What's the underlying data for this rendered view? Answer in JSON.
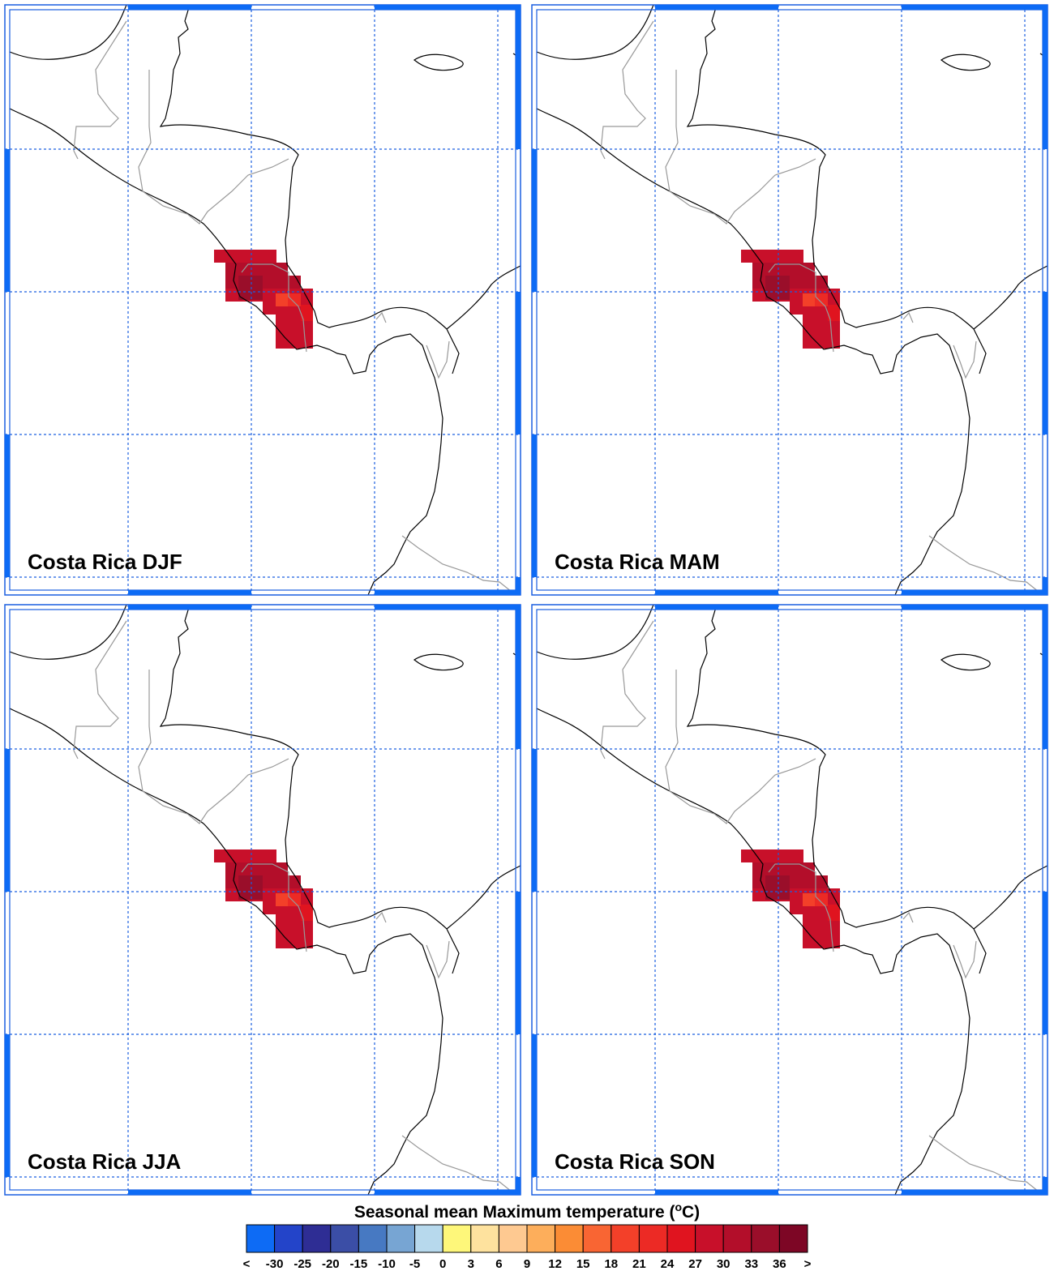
{
  "panels": [
    {
      "title": "Costa Rica DJF"
    },
    {
      "title": "Costa Rica MAM"
    },
    {
      "title": "Costa Rica JJA"
    },
    {
      "title": "Costa Rica SON"
    }
  ],
  "colorbar": {
    "title": [
      "Seasonal mean Maximum temperature (",
      "o",
      "C)"
    ],
    "labels": [
      "<",
      "-30",
      "-25",
      "-20",
      "-15",
      "-10",
      "-5",
      "0",
      "3",
      "6",
      "9",
      "12",
      "15",
      "18",
      "21",
      "24",
      "27",
      "30",
      "33",
      "36",
      ">"
    ],
    "colors": [
      "#0d6bf5",
      "#2344c9",
      "#2e2d94",
      "#3b4ea6",
      "#4779c2",
      "#77a5d3",
      "#b7d9ed",
      "#fef77a",
      "#fee29e",
      "#fec991",
      "#fdae5b",
      "#fb8c35",
      "#f96533",
      "#f34029",
      "#ec2a25",
      "#e0141f",
      "#c8102a",
      "#b30e2a",
      "#9a0e2a",
      "#7d0625"
    ]
  }
}
